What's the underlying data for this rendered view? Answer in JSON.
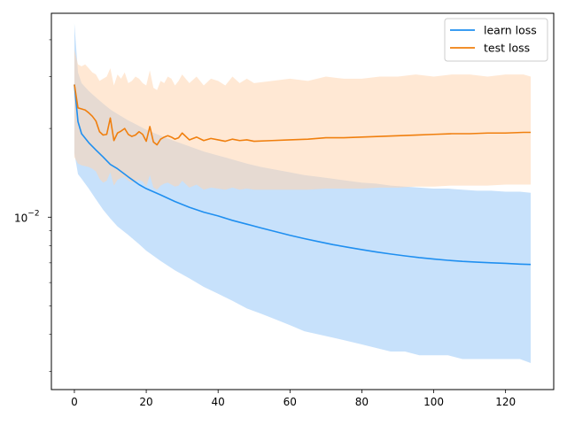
{
  "chart_data": {
    "type": "line",
    "title": "",
    "xlabel": "",
    "ylabel": "",
    "xlim": [
      -6.4,
      133.4
    ],
    "ylim": [
      0.0026,
      0.0492
    ],
    "yscale": "log",
    "grid": false,
    "legend_position": "top-right",
    "x_ticks": [
      0,
      20,
      40,
      60,
      80,
      100,
      120
    ],
    "x_tick_labels": [
      "0",
      "20",
      "40",
      "60",
      "80",
      "100",
      "120"
    ],
    "y_ticks": [
      0.01
    ],
    "y_tick_labels": [
      "10",
      "−2"
    ],
    "y_minor_ticks": [
      0.003,
      0.004,
      0.005,
      0.006,
      0.007,
      0.008,
      0.009,
      0.02,
      0.03,
      0.04
    ],
    "series": [
      {
        "name": "learn loss",
        "color": "#1f8ff0",
        "band_color": "#99c9f7",
        "x": [
          0,
          1,
          2,
          4,
          6,
          8,
          10,
          12,
          15,
          18,
          20,
          24,
          28,
          32,
          36,
          40,
          44,
          48,
          52,
          56,
          60,
          64,
          68,
          72,
          76,
          80,
          84,
          88,
          92,
          96,
          100,
          104,
          108,
          112,
          116,
          120,
          124,
          127
        ],
        "values": [
          0.0282,
          0.0211,
          0.0192,
          0.0179,
          0.0169,
          0.016,
          0.0151,
          0.0146,
          0.0137,
          0.0129,
          0.0125,
          0.0119,
          0.0113,
          0.0108,
          0.0104,
          0.0101,
          0.00975,
          0.00947,
          0.00919,
          0.00893,
          0.00868,
          0.00846,
          0.00826,
          0.00807,
          0.00791,
          0.00776,
          0.00762,
          0.0075,
          0.00739,
          0.00729,
          0.00721,
          0.00714,
          0.00708,
          0.00704,
          0.007,
          0.00697,
          0.00693,
          0.00691
        ],
        "lower": [
          0.0165,
          0.014,
          0.0135,
          0.0125,
          0.0115,
          0.0106,
          0.0099,
          0.0093,
          0.0087,
          0.0081,
          0.0077,
          0.0071,
          0.0066,
          0.0062,
          0.0058,
          0.0055,
          0.0052,
          0.0049,
          0.0047,
          0.0045,
          0.0043,
          0.0041,
          0.004,
          0.0039,
          0.0038,
          0.0037,
          0.0036,
          0.0035,
          0.0035,
          0.0034,
          0.0034,
          0.0034,
          0.0033,
          0.0033,
          0.0033,
          0.0033,
          0.0033,
          0.0032
        ],
        "upper": [
          0.0455,
          0.031,
          0.0285,
          0.0268,
          0.0255,
          0.0243,
          0.0232,
          0.0224,
          0.0213,
          0.0204,
          0.0198,
          0.0189,
          0.0181,
          0.0174,
          0.0167,
          0.0162,
          0.0157,
          0.0152,
          0.0148,
          0.0145,
          0.0142,
          0.0139,
          0.0137,
          0.0135,
          0.0133,
          0.0131,
          0.013,
          0.0128,
          0.0127,
          0.0126,
          0.0125,
          0.0125,
          0.0124,
          0.0123,
          0.0123,
          0.0122,
          0.0122,
          0.0121
        ]
      },
      {
        "name": "test loss",
        "color": "#f07f0e",
        "band_color": "#ffd6b0",
        "x": [
          0,
          1,
          2,
          3,
          4,
          5,
          6,
          7,
          8,
          9,
          10,
          11,
          12,
          13,
          14,
          15,
          16,
          17,
          18,
          19,
          20,
          21,
          22,
          23,
          24,
          25,
          26,
          27,
          28,
          29,
          30,
          32,
          34,
          36,
          38,
          40,
          42,
          44,
          46,
          48,
          50,
          55,
          60,
          65,
          70,
          75,
          80,
          85,
          90,
          95,
          100,
          105,
          110,
          115,
          120,
          125,
          127
        ],
        "values": [
          0.0282,
          0.0235,
          0.0233,
          0.0231,
          0.0226,
          0.022,
          0.0212,
          0.0195,
          0.019,
          0.0191,
          0.0217,
          0.0182,
          0.0193,
          0.0196,
          0.02,
          0.0191,
          0.0188,
          0.019,
          0.0195,
          0.0191,
          0.0181,
          0.0203,
          0.018,
          0.0176,
          0.0184,
          0.0187,
          0.0189,
          0.0187,
          0.0184,
          0.0186,
          0.0193,
          0.0183,
          0.0187,
          0.0182,
          0.0185,
          0.0183,
          0.0181,
          0.0184,
          0.0182,
          0.0183,
          0.0181,
          0.0182,
          0.0183,
          0.0184,
          0.0186,
          0.0186,
          0.0187,
          0.0188,
          0.0189,
          0.019,
          0.0191,
          0.0192,
          0.0192,
          0.0193,
          0.0193,
          0.0194,
          0.0194
        ],
        "lower": [
          0.016,
          0.0152,
          0.015,
          0.0149,
          0.0148,
          0.0146,
          0.0143,
          0.0135,
          0.0131,
          0.0133,
          0.0142,
          0.0128,
          0.0134,
          0.0136,
          0.0137,
          0.0133,
          0.0131,
          0.0132,
          0.0134,
          0.0132,
          0.0127,
          0.0139,
          0.0126,
          0.0124,
          0.0128,
          0.013,
          0.0131,
          0.0129,
          0.0127,
          0.0128,
          0.0133,
          0.0126,
          0.0129,
          0.0124,
          0.0126,
          0.0125,
          0.0124,
          0.0126,
          0.0124,
          0.0125,
          0.0124,
          0.0124,
          0.0124,
          0.0124,
          0.0125,
          0.0125,
          0.0125,
          0.0126,
          0.0126,
          0.0127,
          0.0127,
          0.0128,
          0.0128,
          0.0128,
          0.0129,
          0.0129,
          0.0129
        ],
        "upper": [
          0.037,
          0.033,
          0.0325,
          0.033,
          0.032,
          0.031,
          0.0305,
          0.029,
          0.0295,
          0.03,
          0.032,
          0.028,
          0.0305,
          0.0295,
          0.031,
          0.0285,
          0.029,
          0.03,
          0.0295,
          0.0285,
          0.028,
          0.0315,
          0.0275,
          0.027,
          0.029,
          0.0285,
          0.03,
          0.0295,
          0.028,
          0.029,
          0.0305,
          0.0285,
          0.03,
          0.028,
          0.0295,
          0.029,
          0.028,
          0.03,
          0.0285,
          0.0295,
          0.0285,
          0.029,
          0.0295,
          0.029,
          0.03,
          0.0295,
          0.0295,
          0.03,
          0.03,
          0.0305,
          0.03,
          0.0305,
          0.0305,
          0.03,
          0.0305,
          0.0305,
          0.03
        ]
      }
    ]
  }
}
